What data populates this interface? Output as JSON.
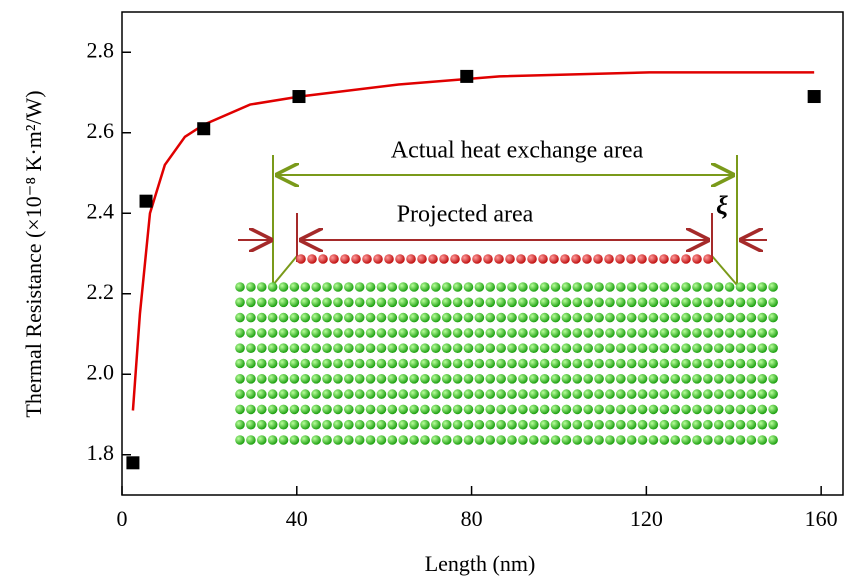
{
  "chart_data": {
    "type": "scatter",
    "x_label": "Length (nm)",
    "y_label": "Thermal Resistance (×10⁻⁸ K·m²/W)",
    "xlim": [
      0,
      165
    ],
    "ylim": [
      1.7,
      2.9
    ],
    "xticks": [
      0,
      40,
      80,
      120,
      160
    ],
    "yticks": [
      1.8,
      {
        "value": 2,
        "label": "2.0"
      },
      2.2,
      2.4,
      2.6,
      2.8
    ],
    "series": [
      {
        "type": "scatter",
        "color": "#000000",
        "x": [
          2.5,
          5.5,
          18.7,
          40.5,
          78.9,
          158.4
        ],
        "values": [
          1.78,
          2.43,
          2.61,
          2.69,
          2.74,
          2.69
        ]
      },
      {
        "type": "line",
        "color": "#e00000",
        "x": [
          2.5,
          4.1,
          6.4,
          9.8,
          14.4,
          18.7,
          29.3,
          40.7,
          63.3,
          86.4,
          120.7,
          150.4,
          158.4
        ],
        "values": [
          1.91,
          2.15,
          2.4,
          2.52,
          2.59,
          2.62,
          2.67,
          2.69,
          2.72,
          2.74,
          2.75,
          2.75,
          2.75
        ]
      }
    ],
    "annotations": [
      "Actual heat exchange area",
      "Projected area",
      "ξ"
    ]
  }
}
